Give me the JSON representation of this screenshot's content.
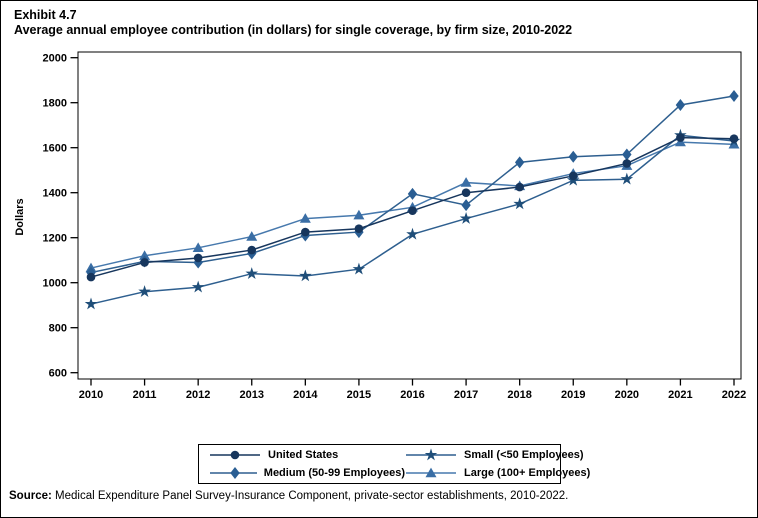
{
  "header": {
    "exhibit_label": "Exhibit 4.7",
    "title": "Average annual employee contribution (in dollars) for single coverage, by firm size, 2010-2022"
  },
  "chart_data": {
    "type": "line",
    "title": "Average annual employee contribution (in dollars) for single coverage, by firm size, 2010-2022",
    "xlabel": "",
    "ylabel": "Dollars",
    "ylim": [
      600,
      2000
    ],
    "ytick_step": 200,
    "grid": false,
    "legend_position": "bottom",
    "x": [
      2010,
      2011,
      2012,
      2013,
      2014,
      2015,
      2016,
      2017,
      2018,
      2019,
      2020,
      2021,
      2022
    ],
    "series": [
      {
        "name": "United States",
        "marker": "circle",
        "line_color": "#17365d",
        "marker_color": "#17365d",
        "values": [
          1025,
          1090,
          1110,
          1145,
          1225,
          1240,
          1320,
          1400,
          1425,
          1475,
          1530,
          1645,
          1640
        ]
      },
      {
        "name": "Small (<50 Employees)",
        "marker": "star",
        "line_color": "#2e5f8f",
        "marker_color": "#1f4e79",
        "values": [
          905,
          960,
          980,
          1040,
          1030,
          1060,
          1215,
          1285,
          1350,
          1455,
          1460,
          1655,
          1630
        ]
      },
      {
        "name": "Medium (50-99 Employees)",
        "marker": "diamond",
        "line_color": "#2e5f8f",
        "marker_color": "#2a5e93",
        "values": [
          1045,
          1095,
          1090,
          1130,
          1210,
          1225,
          1395,
          1345,
          1535,
          1560,
          1570,
          1790,
          1830
        ]
      },
      {
        "name": "Large (100+ Employees)",
        "marker": "triangle",
        "line_color": "#4779ad",
        "marker_color": "#3a6ea5",
        "values": [
          1065,
          1120,
          1155,
          1205,
          1285,
          1300,
          1335,
          1445,
          1430,
          1485,
          1520,
          1625,
          1615
        ]
      }
    ]
  },
  "source": {
    "label": "Source:",
    "text": " Medical Expenditure Panel Survey-Insurance Component, private-sector establishments, 2010-2022."
  }
}
